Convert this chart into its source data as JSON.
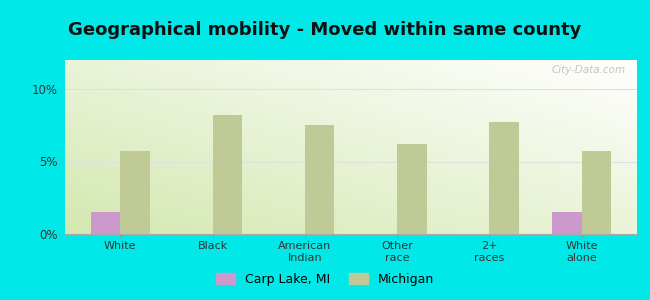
{
  "title": "Geographical mobility - Moved within same county",
  "categories": [
    "White",
    "Black",
    "American\nIndian",
    "Other\nrace",
    "2+\nraces",
    "White\nalone"
  ],
  "carp_lake_values": [
    1.5,
    0,
    0,
    0,
    0,
    1.5
  ],
  "michigan_values": [
    5.7,
    8.2,
    7.5,
    6.2,
    7.7,
    5.7
  ],
  "carp_lake_color": "#cc99cc",
  "michigan_color": "#bfca96",
  "background_color": "#00e8e8",
  "ylim": [
    0,
    12
  ],
  "yticks": [
    0,
    5,
    10
  ],
  "ytick_labels": [
    "0%",
    "5%",
    "10%"
  ],
  "legend_labels": [
    "Carp Lake, MI",
    "Michigan"
  ],
  "title_fontsize": 13,
  "bar_width": 0.32,
  "watermark": "City-Data.com",
  "grid_color": "#e0e0e0",
  "plot_bg_color": "#edf5e0"
}
